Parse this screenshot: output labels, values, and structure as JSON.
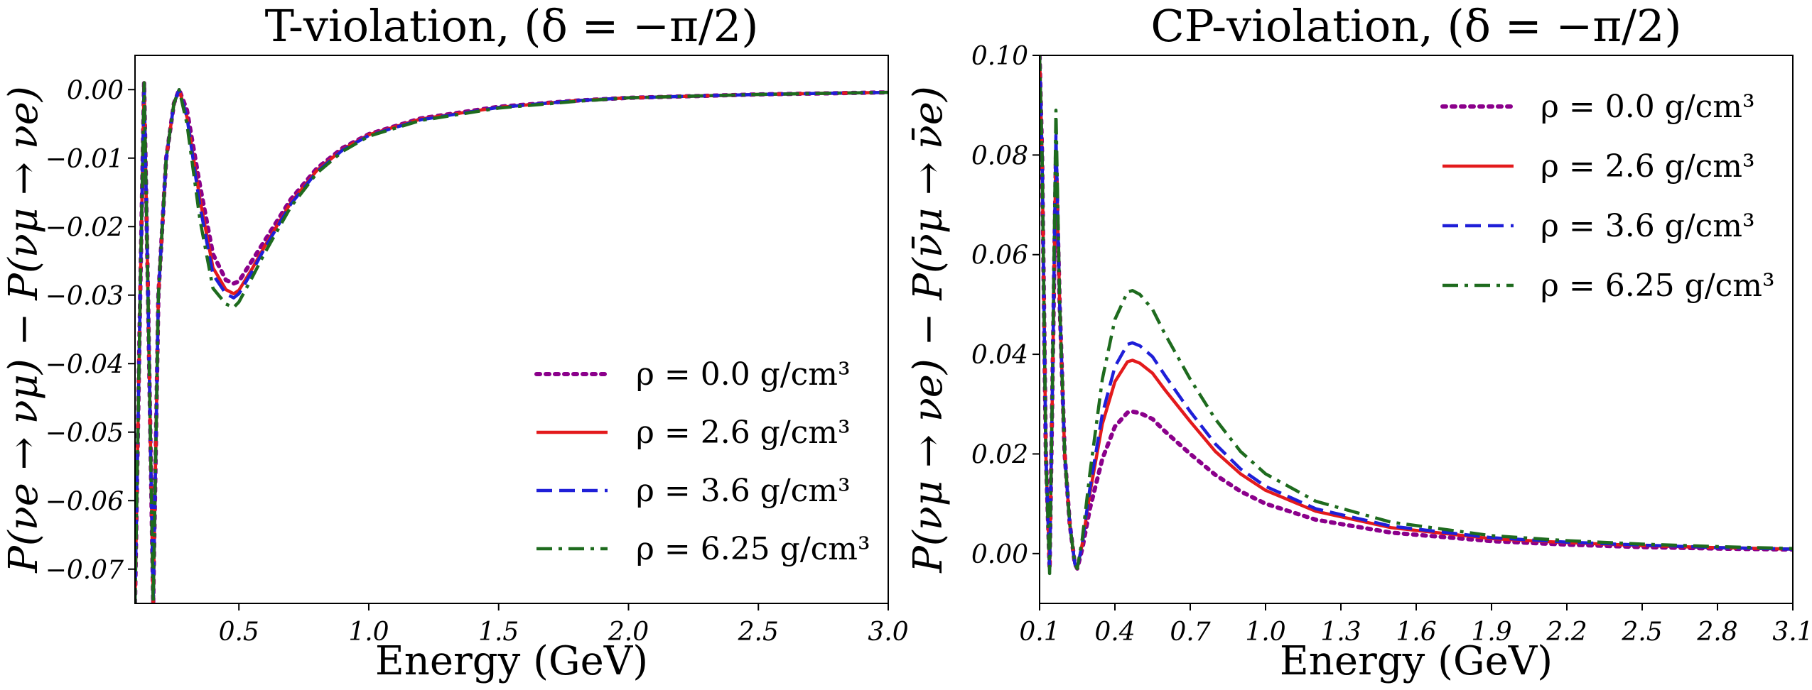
{
  "chart_data": [
    {
      "type": "line",
      "title": "T-violation, (δ = −π/2)",
      "xlabel": "Energy (GeV)",
      "ylabel": "P(νe → νμ) − P(νμ → νe)",
      "xlim": [
        0.1,
        3.0
      ],
      "ylim": [
        -0.075,
        0.005
      ],
      "xticks": [
        0.5,
        1.0,
        1.5,
        2.0,
        2.5,
        3.0
      ],
      "xtick_labels": [
        "0.5",
        "1.0",
        "1.5",
        "2.0",
        "2.5",
        "3.0"
      ],
      "yticks": [
        0.0,
        -0.01,
        -0.02,
        -0.03,
        -0.04,
        -0.05,
        -0.06,
        -0.07
      ],
      "ytick_labels": [
        "0.00",
        "−0.01",
        "−0.02",
        "−0.03",
        "−0.04",
        "−0.05",
        "−0.06",
        "−0.07"
      ],
      "legend_position": "lower-right",
      "grid": false,
      "series": [
        {
          "name": "ρ = 0.0 g/cm³",
          "color": "#8B008B",
          "style": "dotted",
          "x": [
            0.1,
            0.12,
            0.135,
            0.15,
            0.17,
            0.19,
            0.22,
            0.25,
            0.27,
            0.3,
            0.35,
            0.4,
            0.45,
            0.48,
            0.5,
            0.55,
            0.6,
            0.7,
            0.8,
            0.9,
            1.0,
            1.2,
            1.5,
            1.8,
            2.0,
            2.5,
            3.0
          ],
          "y": [
            -0.075,
            -0.03,
            0.001,
            -0.03,
            -0.075,
            -0.03,
            -0.01,
            -0.002,
            0.0,
            -0.003,
            -0.014,
            -0.024,
            -0.0278,
            -0.0283,
            -0.028,
            -0.025,
            -0.022,
            -0.016,
            -0.0115,
            -0.0085,
            -0.0065,
            -0.0042,
            -0.0025,
            -0.0016,
            -0.0012,
            -0.0007,
            -0.0004
          ]
        },
        {
          "name": "ρ = 2.6 g/cm³",
          "color": "#E31A1C",
          "style": "solid",
          "x": [
            0.1,
            0.12,
            0.135,
            0.15,
            0.17,
            0.19,
            0.22,
            0.25,
            0.27,
            0.3,
            0.35,
            0.4,
            0.45,
            0.48,
            0.5,
            0.55,
            0.6,
            0.7,
            0.8,
            0.9,
            1.0,
            1.2,
            1.5,
            1.8,
            2.0,
            2.5,
            3.0
          ],
          "y": [
            -0.075,
            -0.03,
            0.001,
            -0.03,
            -0.075,
            -0.03,
            -0.01,
            -0.002,
            0.0,
            -0.004,
            -0.016,
            -0.026,
            -0.0292,
            -0.0298,
            -0.0293,
            -0.0262,
            -0.0228,
            -0.0165,
            -0.0118,
            -0.0087,
            -0.0066,
            -0.0043,
            -0.0026,
            -0.0016,
            -0.0012,
            -0.0007,
            -0.0004
          ]
        },
        {
          "name": "ρ = 3.6 g/cm³",
          "color": "#1F1FD8",
          "style": "dashed",
          "x": [
            0.1,
            0.12,
            0.135,
            0.15,
            0.17,
            0.19,
            0.22,
            0.25,
            0.27,
            0.3,
            0.35,
            0.4,
            0.45,
            0.48,
            0.5,
            0.55,
            0.6,
            0.7,
            0.8,
            0.9,
            1.0,
            1.2,
            1.5,
            1.8,
            2.0,
            2.5,
            3.0
          ],
          "y": [
            -0.075,
            -0.03,
            0.001,
            -0.03,
            -0.075,
            -0.03,
            -0.01,
            -0.002,
            0.0,
            -0.004,
            -0.017,
            -0.027,
            -0.0298,
            -0.0304,
            -0.0298,
            -0.0266,
            -0.0231,
            -0.0167,
            -0.012,
            -0.0088,
            -0.0067,
            -0.0044,
            -0.0026,
            -0.0016,
            -0.0012,
            -0.0007,
            -0.0004
          ]
        },
        {
          "name": "ρ = 6.25 g/cm³",
          "color": "#1E6B1E",
          "style": "dashdot",
          "x": [
            0.1,
            0.12,
            0.135,
            0.15,
            0.17,
            0.19,
            0.22,
            0.25,
            0.27,
            0.3,
            0.35,
            0.4,
            0.45,
            0.48,
            0.5,
            0.55,
            0.6,
            0.7,
            0.8,
            0.9,
            1.0,
            1.2,
            1.5,
            1.8,
            2.0,
            2.5,
            3.0
          ],
          "y": [
            -0.075,
            -0.03,
            0.001,
            -0.03,
            -0.075,
            -0.03,
            -0.01,
            -0.002,
            0.0,
            -0.005,
            -0.019,
            -0.029,
            -0.0313,
            -0.0318,
            -0.031,
            -0.0275,
            -0.0238,
            -0.0171,
            -0.0122,
            -0.009,
            -0.0068,
            -0.0045,
            -0.0027,
            -0.0017,
            -0.0012,
            -0.0007,
            -0.0004
          ]
        }
      ]
    },
    {
      "type": "line",
      "title": "CP-violation, (δ = −π/2)",
      "xlabel": "Energy (GeV)",
      "ylabel": "P(νμ → νe) − P(ν̄μ → ν̄e)",
      "xlim": [
        0.1,
        3.1
      ],
      "ylim": [
        -0.01,
        0.1
      ],
      "xticks": [
        0.1,
        0.4,
        0.7,
        1.0,
        1.3,
        1.6,
        1.9,
        2.2,
        2.5,
        2.8,
        3.1
      ],
      "xtick_labels": [
        "0.1",
        "0.4",
        "0.7",
        "1.0",
        "1.3",
        "1.6",
        "1.9",
        "2.2",
        "2.5",
        "2.8",
        "3.1"
      ],
      "yticks": [
        0.0,
        0.02,
        0.04,
        0.06,
        0.08,
        0.1
      ],
      "ytick_labels": [
        "0.00",
        "0.02",
        "0.04",
        "0.06",
        "0.08",
        "0.10"
      ],
      "legend_position": "upper-right",
      "grid": false,
      "series": [
        {
          "name": "ρ = 0.0 g/cm³",
          "color": "#8B008B",
          "style": "dotted",
          "x": [
            0.1,
            0.11,
            0.125,
            0.14,
            0.15,
            0.165,
            0.18,
            0.2,
            0.22,
            0.24,
            0.25,
            0.27,
            0.3,
            0.35,
            0.4,
            0.45,
            0.47,
            0.5,
            0.55,
            0.6,
            0.7,
            0.8,
            0.9,
            1.0,
            1.2,
            1.5,
            1.9,
            2.2,
            2.5,
            2.8,
            3.1
          ],
          "y": [
            0.1,
            0.08,
            0.02,
            -0.003,
            0.03,
            0.08,
            0.05,
            0.02,
            0.006,
            -0.002,
            -0.003,
            0.001,
            0.009,
            0.019,
            0.0255,
            0.0283,
            0.0285,
            0.0282,
            0.027,
            0.0245,
            0.02,
            0.0158,
            0.0125,
            0.01,
            0.0068,
            0.0042,
            0.0025,
            0.0018,
            0.0013,
            0.001,
            0.0008
          ]
        },
        {
          "name": "ρ = 2.6 g/cm³",
          "color": "#E31A1C",
          "style": "solid",
          "x": [
            0.1,
            0.11,
            0.125,
            0.14,
            0.15,
            0.165,
            0.18,
            0.2,
            0.22,
            0.24,
            0.25,
            0.27,
            0.3,
            0.35,
            0.4,
            0.45,
            0.47,
            0.5,
            0.55,
            0.6,
            0.7,
            0.8,
            0.9,
            1.0,
            1.2,
            1.5,
            1.9,
            2.2,
            2.5,
            2.8,
            3.1
          ],
          "y": [
            0.1,
            0.08,
            0.02,
            -0.003,
            0.03,
            0.082,
            0.05,
            0.02,
            0.006,
            -0.002,
            -0.003,
            0.002,
            0.012,
            0.026,
            0.0345,
            0.0385,
            0.0388,
            0.0382,
            0.0362,
            0.0328,
            0.0265,
            0.0205,
            0.016,
            0.0127,
            0.0085,
            0.0052,
            0.003,
            0.0022,
            0.0016,
            0.0012,
            0.0009
          ]
        },
        {
          "name": "ρ = 3.6 g/cm³",
          "color": "#1F1FD8",
          "style": "dashed",
          "x": [
            0.1,
            0.11,
            0.125,
            0.14,
            0.15,
            0.165,
            0.18,
            0.2,
            0.22,
            0.24,
            0.25,
            0.27,
            0.3,
            0.35,
            0.4,
            0.45,
            0.47,
            0.5,
            0.55,
            0.6,
            0.7,
            0.8,
            0.9,
            1.0,
            1.2,
            1.5,
            1.9,
            2.2,
            2.5,
            2.8,
            3.1
          ],
          "y": [
            0.1,
            0.08,
            0.02,
            -0.003,
            0.03,
            0.084,
            0.05,
            0.02,
            0.006,
            -0.002,
            -0.003,
            0.002,
            0.013,
            0.028,
            0.0375,
            0.042,
            0.0423,
            0.0417,
            0.0395,
            0.0357,
            0.0285,
            0.022,
            0.017,
            0.0135,
            0.009,
            0.0055,
            0.0032,
            0.0023,
            0.0017,
            0.0012,
            0.0009
          ]
        },
        {
          "name": "ρ = 6.25 g/cm³",
          "color": "#1E6B1E",
          "style": "dashdot",
          "x": [
            0.1,
            0.11,
            0.125,
            0.14,
            0.15,
            0.165,
            0.18,
            0.2,
            0.22,
            0.24,
            0.25,
            0.27,
            0.3,
            0.35,
            0.4,
            0.45,
            0.47,
            0.5,
            0.55,
            0.6,
            0.7,
            0.8,
            0.9,
            1.0,
            1.2,
            1.5,
            1.9,
            2.2,
            2.5,
            2.8,
            3.1
          ],
          "y": [
            0.1,
            0.08,
            0.02,
            -0.004,
            0.03,
            0.089,
            0.05,
            0.02,
            0.006,
            -0.002,
            -0.003,
            0.003,
            0.016,
            0.035,
            0.047,
            0.0525,
            0.0528,
            0.052,
            0.049,
            0.044,
            0.035,
            0.027,
            0.0205,
            0.016,
            0.0105,
            0.0063,
            0.0036,
            0.0026,
            0.0019,
            0.0014,
            0.001
          ]
        }
      ]
    }
  ]
}
